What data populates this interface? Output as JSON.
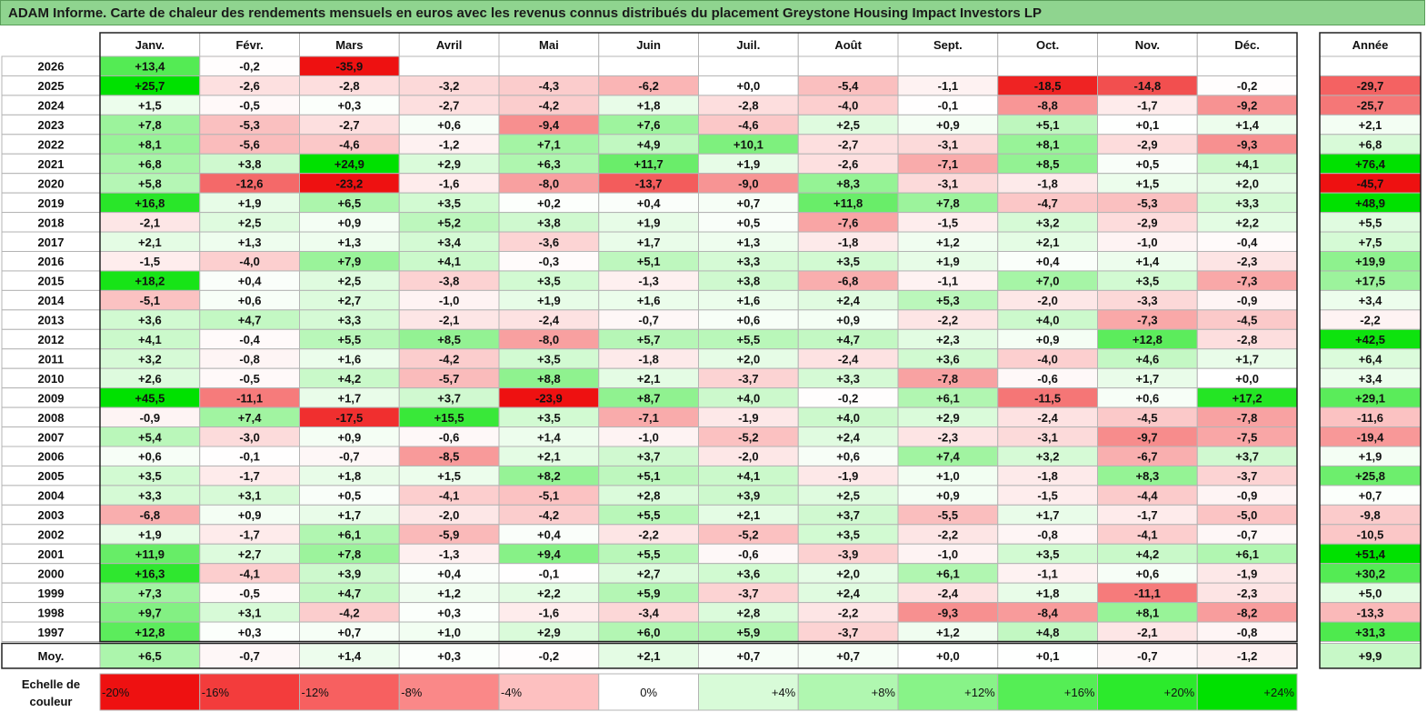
{
  "title": "ADAM Informe. Carte de chaleur des rendements mensuels en euros avec les revenus connus distribués du placement Greystone Housing Impact Investors LP",
  "chart_data": {
    "type": "heatmap",
    "months": [
      "Janv.",
      "Févr.",
      "Mars",
      "Avril",
      "Mai",
      "Juin",
      "Juil.",
      "Août",
      "Sept.",
      "Oct.",
      "Nov.",
      "Déc."
    ],
    "year_header": "Année",
    "rows": [
      {
        "label": "2026",
        "months": [
          "+13,4",
          "-0,2",
          "-35,9",
          "",
          "",
          "",
          "",
          "",
          "",
          "",
          "",
          ""
        ],
        "year": ""
      },
      {
        "label": "2025",
        "months": [
          "+25,7",
          "-2,6",
          "-2,8",
          "-3,2",
          "-4,3",
          "-6,2",
          "+0,0",
          "-5,4",
          "-1,1",
          "-18,5",
          "-14,8",
          "-0,2"
        ],
        "year": "-29,7"
      },
      {
        "label": "2024",
        "months": [
          "+1,5",
          "-0,5",
          "+0,3",
          "-2,7",
          "-4,2",
          "+1,8",
          "-2,8",
          "-4,0",
          "-0,1",
          "-8,8",
          "-1,7",
          "-9,2"
        ],
        "year": "-25,7"
      },
      {
        "label": "2023",
        "months": [
          "+7,8",
          "-5,3",
          "-2,7",
          "+0,6",
          "-9,4",
          "+7,6",
          "-4,6",
          "+2,5",
          "+0,9",
          "+5,1",
          "+0,1",
          "+1,4"
        ],
        "year": "+2,1"
      },
      {
        "label": "2022",
        "months": [
          "+8,1",
          "-5,6",
          "-4,6",
          "-1,2",
          "+7,1",
          "+4,9",
          "+10,1",
          "-2,7",
          "-3,1",
          "+8,1",
          "-2,9",
          "-9,3"
        ],
        "year": "+6,8"
      },
      {
        "label": "2021",
        "months": [
          "+6,8",
          "+3,8",
          "+24,9",
          "+2,9",
          "+6,3",
          "+11,7",
          "+1,9",
          "-2,6",
          "-7,1",
          "+8,5",
          "+0,5",
          "+4,1"
        ],
        "year": "+76,4"
      },
      {
        "label": "2020",
        "months": [
          "+5,8",
          "-12,6",
          "-23,2",
          "-1,6",
          "-8,0",
          "-13,7",
          "-9,0",
          "+8,3",
          "-3,1",
          "-1,8",
          "+1,5",
          "+2,0"
        ],
        "year": "-45,7"
      },
      {
        "label": "2019",
        "months": [
          "+16,8",
          "+1,9",
          "+6,5",
          "+3,5",
          "+0,2",
          "+0,4",
          "+0,7",
          "+11,8",
          "+7,8",
          "-4,7",
          "-5,3",
          "+3,3"
        ],
        "year": "+48,9"
      },
      {
        "label": "2018",
        "months": [
          "-2,1",
          "+2,5",
          "+0,9",
          "+5,2",
          "+3,8",
          "+1,9",
          "+0,5",
          "-7,6",
          "-1,5",
          "+3,2",
          "-2,9",
          "+2,2"
        ],
        "year": "+5,5"
      },
      {
        "label": "2017",
        "months": [
          "+2,1",
          "+1,3",
          "+1,3",
          "+3,4",
          "-3,6",
          "+1,7",
          "+1,3",
          "-1,8",
          "+1,2",
          "+2,1",
          "-1,0",
          "-0,4"
        ],
        "year": "+7,5"
      },
      {
        "label": "2016",
        "months": [
          "-1,5",
          "-4,0",
          "+7,9",
          "+4,1",
          "-0,3",
          "+5,1",
          "+3,3",
          "+3,5",
          "+1,9",
          "+0,4",
          "+1,4",
          "-2,3"
        ],
        "year": "+19,9"
      },
      {
        "label": "2015",
        "months": [
          "+18,2",
          "+0,4",
          "+2,5",
          "-3,8",
          "+3,5",
          "-1,3",
          "+3,8",
          "-6,8",
          "-1,1",
          "+7,0",
          "+3,5",
          "-7,3"
        ],
        "year": "+17,5"
      },
      {
        "label": "2014",
        "months": [
          "-5,1",
          "+0,6",
          "+2,7",
          "-1,0",
          "+1,9",
          "+1,6",
          "+1,6",
          "+2,4",
          "+5,3",
          "-2,0",
          "-3,3",
          "-0,9"
        ],
        "year": "+3,4"
      },
      {
        "label": "2013",
        "months": [
          "+3,6",
          "+4,7",
          "+3,3",
          "-2,1",
          "-2,4",
          "-0,7",
          "+0,6",
          "+0,9",
          "-2,2",
          "+4,0",
          "-7,3",
          "-4,5"
        ],
        "year": "-2,2"
      },
      {
        "label": "2012",
        "months": [
          "+4,1",
          "-0,4",
          "+5,5",
          "+8,5",
          "-8,0",
          "+5,7",
          "+5,5",
          "+4,7",
          "+2,3",
          "+0,9",
          "+12,8",
          "-2,8"
        ],
        "year": "+42,5"
      },
      {
        "label": "2011",
        "months": [
          "+3,2",
          "-0,8",
          "+1,6",
          "-4,2",
          "+3,5",
          "-1,8",
          "+2,0",
          "-2,4",
          "+3,6",
          "-4,0",
          "+4,6",
          "+1,7"
        ],
        "year": "+6,4"
      },
      {
        "label": "2010",
        "months": [
          "+2,6",
          "-0,5",
          "+4,2",
          "-5,7",
          "+8,8",
          "+2,1",
          "-3,7",
          "+3,3",
          "-7,8",
          "-0,6",
          "+1,7",
          "+0,0"
        ],
        "year": "+3,4"
      },
      {
        "label": "2009",
        "months": [
          "+45,5",
          "-11,1",
          "+1,7",
          "+3,7",
          "-23,9",
          "+8,7",
          "+4,0",
          "-0,2",
          "+6,1",
          "-11,5",
          "+0,6",
          "+17,2"
        ],
        "year": "+29,1"
      },
      {
        "label": "2008",
        "months": [
          "-0,9",
          "+7,4",
          "-17,5",
          "+15,5",
          "+3,5",
          "-7,1",
          "-1,9",
          "+4,0",
          "+2,9",
          "-2,4",
          "-4,5",
          "-7,8"
        ],
        "year": "-11,6"
      },
      {
        "label": "2007",
        "months": [
          "+5,4",
          "-3,0",
          "+0,9",
          "-0,6",
          "+1,4",
          "-1,0",
          "-5,2",
          "+2,4",
          "-2,3",
          "-3,1",
          "-9,7",
          "-7,5"
        ],
        "year": "-19,4"
      },
      {
        "label": "2006",
        "months": [
          "+0,6",
          "-0,1",
          "-0,7",
          "-8,5",
          "+2,1",
          "+3,7",
          "-2,0",
          "+0,6",
          "+7,4",
          "+3,2",
          "-6,7",
          "+3,7"
        ],
        "year": "+1,9"
      },
      {
        "label": "2005",
        "months": [
          "+3,5",
          "-1,7",
          "+1,8",
          "+1,5",
          "+8,2",
          "+5,1",
          "+4,1",
          "-1,9",
          "+1,0",
          "-1,8",
          "+8,3",
          "-3,7"
        ],
        "year": "+25,8"
      },
      {
        "label": "2004",
        "months": [
          "+3,3",
          "+3,1",
          "+0,5",
          "-4,1",
          "-5,1",
          "+2,8",
          "+3,9",
          "+2,5",
          "+0,9",
          "-1,5",
          "-4,4",
          "-0,9"
        ],
        "year": "+0,7"
      },
      {
        "label": "2003",
        "months": [
          "-6,8",
          "+0,9",
          "+1,7",
          "-2,0",
          "-4,2",
          "+5,5",
          "+2,1",
          "+3,7",
          "-5,5",
          "+1,7",
          "-1,7",
          "-5,0"
        ],
        "year": "-9,8"
      },
      {
        "label": "2002",
        "months": [
          "+1,9",
          "-1,7",
          "+6,1",
          "-5,9",
          "+0,4",
          "-2,2",
          "-5,2",
          "+3,5",
          "-2,2",
          "-0,8",
          "-4,1",
          "-0,7"
        ],
        "year": "-10,5"
      },
      {
        "label": "2001",
        "months": [
          "+11,9",
          "+2,7",
          "+7,8",
          "-1,3",
          "+9,4",
          "+5,5",
          "-0,6",
          "-3,9",
          "-1,0",
          "+3,5",
          "+4,2",
          "+6,1"
        ],
        "year": "+51,4"
      },
      {
        "label": "2000",
        "months": [
          "+16,3",
          "-4,1",
          "+3,9",
          "+0,4",
          "-0,1",
          "+2,7",
          "+3,6",
          "+2,0",
          "+6,1",
          "-1,1",
          "+0,6",
          "-1,9"
        ],
        "year": "+30,2"
      },
      {
        "label": "1999",
        "months": [
          "+7,3",
          "-0,5",
          "+4,7",
          "+1,2",
          "+2,2",
          "+5,9",
          "-3,7",
          "+2,4",
          "-2,4",
          "+1,8",
          "-11,1",
          "-2,3"
        ],
        "year": "+5,0"
      },
      {
        "label": "1998",
        "months": [
          "+9,7",
          "+3,1",
          "-4,2",
          "+0,3",
          "-1,6",
          "-3,4",
          "+2,8",
          "-2,2",
          "-9,3",
          "-8,4",
          "+8,1",
          "-8,2"
        ],
        "year": "-13,3"
      },
      {
        "label": "1997",
        "months": [
          "+12,8",
          "+0,3",
          "+0,7",
          "+1,0",
          "+2,9",
          "+6,0",
          "+5,9",
          "-3,7",
          "+1,2",
          "+4,8",
          "-2,1",
          "-0,8"
        ],
        "year": "+31,3"
      }
    ],
    "average": {
      "label": "Moy.",
      "months": [
        "+6,5",
        "-0,7",
        "+1,4",
        "+0,3",
        "-0,2",
        "+2,1",
        "+0,7",
        "+0,7",
        "+0,0",
        "+0,1",
        "-0,7",
        "-1,2"
      ],
      "year": "+9,9"
    },
    "legend": {
      "label_line1": "Echelle de",
      "label_line2": "couleur",
      "stops": [
        "-20%",
        "-16%",
        "-12%",
        "-8%",
        "-4%",
        "0%",
        "+4%",
        "+8%",
        "+12%",
        "+16%",
        "+20%",
        "+24%"
      ],
      "colors": [
        "#ee1111",
        "#f33c3c",
        "#f76060",
        "#fa8888",
        "#fdc0c0",
        "#ffffff",
        "#d8fbd8",
        "#b0f7b0",
        "#88f388",
        "#55ee55",
        "#2cea2c",
        "#00e100"
      ]
    },
    "colors": {
      "negative": "#ee1111",
      "positive": "#00e100",
      "neutral": "#ffffff",
      "grid": "#b4b4b4",
      "border": "#222222"
    }
  }
}
